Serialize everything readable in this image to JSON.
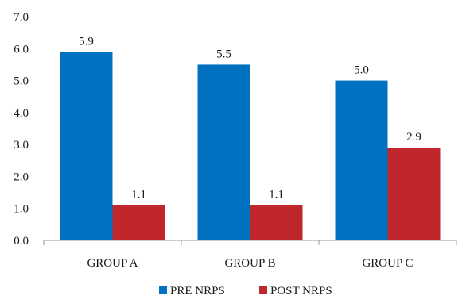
{
  "chart_data": {
    "type": "bar",
    "categories": [
      "GROUP A",
      "GROUP B",
      "GROUP C"
    ],
    "series": [
      {
        "name": "PRE NRPS",
        "values": [
          5.9,
          5.5,
          5.0
        ],
        "labels": [
          "5.9",
          "5.5",
          "5.0"
        ],
        "color": "#0070C0"
      },
      {
        "name": "POST NRPS",
        "values": [
          1.1,
          1.1,
          2.9
        ],
        "labels": [
          "1.1",
          "1.1",
          "2.9"
        ],
        "color": "#C0272D"
      }
    ],
    "y_ticks": [
      "0.0",
      "1.0",
      "2.0",
      "3.0",
      "4.0",
      "5.0",
      "6.0",
      "7.0"
    ],
    "ylim": [
      0,
      7
    ],
    "grid": false,
    "legend": "bottom-center",
    "title": "",
    "xlabel": "",
    "ylabel": ""
  }
}
